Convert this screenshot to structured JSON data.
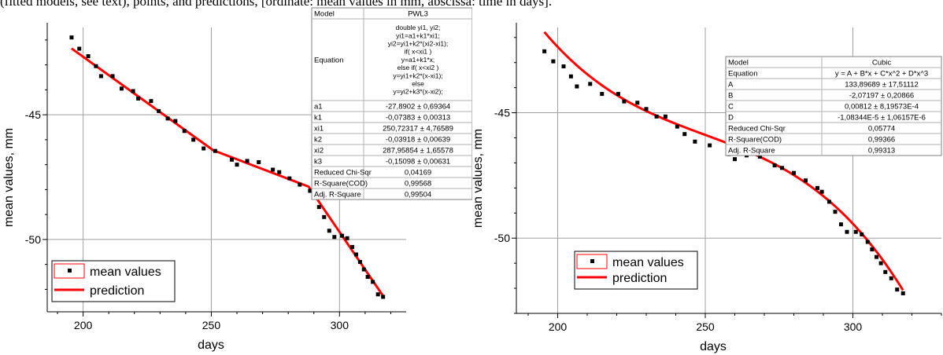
{
  "top_fragment": "(fitted models, see text), points, and predictions, [ordinate: mean values in mm, abscissa: time in days].",
  "chart_data": [
    {
      "type": "scatter",
      "subtype": "scatter with fitted line",
      "xlabel": "days",
      "ylabel": "mean values, mm",
      "x_ticks": [
        200,
        250,
        300
      ],
      "y_ticks": [
        -45,
        -50
      ],
      "xlim": [
        186,
        326
      ],
      "ylim": [
        -52.9,
        -41.5
      ],
      "grid": true,
      "legend": {
        "position": "bottom-left",
        "entries": [
          "mean values",
          "prediction"
        ]
      },
      "series": [
        {
          "name": "mean values",
          "kind": "points",
          "color": "#000000",
          "points": [
            [
              195.5,
              -41.9
            ],
            [
              198.5,
              -42.35
            ],
            [
              202,
              -42.65
            ],
            [
              205,
              -43.05
            ],
            [
              207,
              -43.45
            ],
            [
              211.5,
              -43.45
            ],
            [
              215,
              -43.95
            ],
            [
              219.5,
              -44.05
            ],
            [
              221.5,
              -44.35
            ],
            [
              226.5,
              -44.45
            ],
            [
              229.5,
              -44.85
            ],
            [
              233,
              -45.15
            ],
            [
              236,
              -45.25
            ],
            [
              239.5,
              -45.65
            ],
            [
              243,
              -46.0
            ],
            [
              247,
              -46.35
            ],
            [
              251.5,
              -46.45
            ],
            [
              258,
              -46.8
            ],
            [
              260,
              -47.0
            ],
            [
              264,
              -46.85
            ],
            [
              268.5,
              -46.9
            ],
            [
              274,
              -47.2
            ],
            [
              276.5,
              -47.3
            ],
            [
              280.5,
              -47.55
            ],
            [
              284.5,
              -47.8
            ],
            [
              288.5,
              -48.05
            ],
            [
              290.5,
              -48.3
            ],
            [
              292,
              -48.7
            ],
            [
              294,
              -49.1
            ],
            [
              296,
              -49.65
            ],
            [
              298,
              -49.9
            ],
            [
              301,
              -49.85
            ],
            [
              303,
              -49.95
            ],
            [
              305,
              -50.3
            ],
            [
              306.5,
              -50.6
            ],
            [
              308,
              -50.9
            ],
            [
              309.5,
              -51.2
            ],
            [
              311,
              -51.5
            ],
            [
              313,
              -51.7
            ],
            [
              315,
              -52.2
            ],
            [
              317,
              -52.3
            ]
          ]
        },
        {
          "name": "prediction",
          "kind": "line",
          "color": "#ff0000",
          "points": [
            [
              195.5,
              -42.34
            ],
            [
              250.72,
              -46.42
            ],
            [
              287.96,
              -47.88
            ],
            [
              317,
              -52.26
            ]
          ]
        }
      ],
      "fit_table": {
        "rows": [
          {
            "label": "Model",
            "value": "PWL3"
          },
          {
            "label": "Equation",
            "value": [
              "double yi1, yi2;",
              "yi1=a1+k1*xi1;",
              "yi2=yi1+k2*(xi2-xi1);",
              "if( x<xi1 )",
              "y=a1+k1*x;",
              "else if( x<xi2 )",
              "y=yi1+k2*(x-xi1);",
              "else",
              "y=yi2+k3*(x-xi2);"
            ]
          },
          {
            "label": "a1",
            "value": "-27,8902 ± 0,69364"
          },
          {
            "label": "k1",
            "value": "-0,07383 ± 0,00313"
          },
          {
            "label": "xi1",
            "value": "250,72317 ± 4,76589"
          },
          {
            "label": "k2",
            "value": "-0,03918 ± 0,00639"
          },
          {
            "label": "xi2",
            "value": "287,95854 ± 1,65578"
          },
          {
            "label": "k3",
            "value": "-0,15098 ± 0,00631"
          },
          {
            "label": "Reduced Chi-Sqr",
            "value": "0,04169"
          },
          {
            "label": "R-Square(COD)",
            "value": "0,99568"
          },
          {
            "label": "Adj. R-Square",
            "value": "0,99504"
          }
        ]
      }
    },
    {
      "type": "scatter",
      "subtype": "scatter with fitted line",
      "xlabel": "days",
      "ylabel": "mean values, mm",
      "x_ticks": [
        200,
        250,
        300
      ],
      "y_ticks": [
        -45,
        -50
      ],
      "xlim": [
        186,
        330
      ],
      "ylim": [
        -53.0,
        -41.6
      ],
      "grid": true,
      "legend": {
        "position": "bottom-left",
        "entries": [
          "mean values",
          "prediction"
        ]
      },
      "series": [
        {
          "name": "mean values",
          "kind": "points",
          "color": "#000000",
          "points": [
            [
              195.5,
              -42.55
            ],
            [
              198.5,
              -42.95
            ],
            [
              202,
              -43.15
            ],
            [
              204.5,
              -43.55
            ],
            [
              206.5,
              -43.95
            ],
            [
              211,
              -43.85
            ],
            [
              215,
              -44.25
            ],
            [
              220.5,
              -44.25
            ],
            [
              222.5,
              -44.55
            ],
            [
              227,
              -44.6
            ],
            [
              230,
              -44.85
            ],
            [
              233.5,
              -45.15
            ],
            [
              236.5,
              -45.15
            ],
            [
              240.5,
              -45.55
            ],
            [
              243,
              -45.85
            ],
            [
              246.5,
              -46.15
            ],
            [
              251.5,
              -46.3
            ],
            [
              258,
              -46.65
            ],
            [
              260,
              -46.85
            ],
            [
              264,
              -46.7
            ],
            [
              268.5,
              -46.75
            ],
            [
              273.5,
              -47.1
            ],
            [
              276,
              -47.2
            ],
            [
              280,
              -47.4
            ],
            [
              284,
              -47.7
            ],
            [
              288,
              -48.0
            ],
            [
              289.5,
              -48.15
            ],
            [
              292,
              -48.55
            ],
            [
              294,
              -48.95
            ],
            [
              296,
              -49.45
            ],
            [
              298,
              -49.75
            ],
            [
              301,
              -49.75
            ],
            [
              303,
              -49.85
            ],
            [
              305,
              -50.15
            ],
            [
              306.5,
              -50.45
            ],
            [
              308,
              -50.75
            ],
            [
              309.5,
              -51.0
            ],
            [
              311,
              -51.35
            ],
            [
              313,
              -51.6
            ],
            [
              315,
              -52.05
            ],
            [
              317,
              -52.2
            ]
          ]
        },
        {
          "name": "prediction",
          "kind": "line",
          "color": "#ff0000",
          "coefficients": {
            "A": 133.89689,
            "B": -2.07197,
            "C": 0.00812,
            "D": -1.08344e-05
          },
          "x_range": [
            195.5,
            317
          ]
        }
      ],
      "fit_table": {
        "rows": [
          {
            "label": "Model",
            "value": "Cubic"
          },
          {
            "label": "Equation",
            "value": "y = A + B*x + C*x^2 + D*x^3"
          },
          {
            "label": "A",
            "value": "133,89689 ± 17,51112"
          },
          {
            "label": "B",
            "value": "-2,07197 ± 0,20866"
          },
          {
            "label": "C",
            "value": "0,00812 ± 8,19573E-4"
          },
          {
            "label": "D",
            "value": "-1,08344E-5 ± 1,06157E-6"
          },
          {
            "label": "Reduced Chi-Sqr",
            "value": "0,05774"
          },
          {
            "label": "R-Square(COD)",
            "value": "0,99366"
          },
          {
            "label": "Adj. R-Square",
            "value": "0,99313"
          }
        ]
      }
    }
  ]
}
